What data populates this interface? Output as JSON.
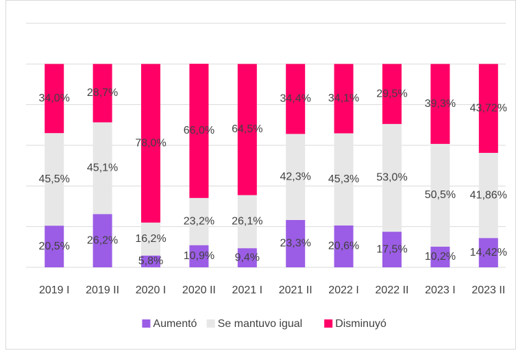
{
  "chart_data": {
    "type": "stacked_bar_100",
    "categories": [
      "2019 I",
      "2019 II",
      "2020 I",
      "2020 II",
      "2021 I",
      "2021 II",
      "2022 I",
      "2022 II",
      "2023 I",
      "2023 II"
    ],
    "series": [
      {
        "name": "Aumentó",
        "color": "#9b5de5",
        "values": [
          20.5,
          26.2,
          5.8,
          10.9,
          9.4,
          23.3,
          20.6,
          17.5,
          10.2,
          14.42
        ],
        "value_labels": [
          "20,5%",
          "26,2%",
          "5,8%",
          "10,9%",
          "9,4%",
          "23,3%",
          "20,6%",
          "17,5%",
          "10,2%",
          "14,42%"
        ]
      },
      {
        "name": "Se mantuvo igual",
        "color": "#e7e7e7",
        "values": [
          45.5,
          45.1,
          16.2,
          23.2,
          26.1,
          42.3,
          45.3,
          53.0,
          50.5,
          41.86
        ],
        "value_labels": [
          "45,5%",
          "45,1%",
          "16,2%",
          "23,2%",
          "26,1%",
          "42,3%",
          "45,3%",
          "53,0%",
          "50,5%",
          "41,86%"
        ]
      },
      {
        "name": "Disminuyó",
        "color": "#ff0066",
        "values": [
          34.0,
          28.7,
          78.0,
          66.0,
          64.5,
          34.4,
          34.1,
          29.5,
          39.3,
          43.72
        ],
        "value_labels": [
          "34,0%",
          "28,7%",
          "78,0%",
          "66,0%",
          "64,5%",
          "34,4%",
          "34,1%",
          "29,5%",
          "39,3%",
          "43,72%"
        ]
      }
    ],
    "ylim": [
      0,
      120
    ],
    "yticks": [
      0,
      20,
      40,
      60,
      80,
      100,
      120
    ],
    "grid": true,
    "legend": "bottom"
  }
}
